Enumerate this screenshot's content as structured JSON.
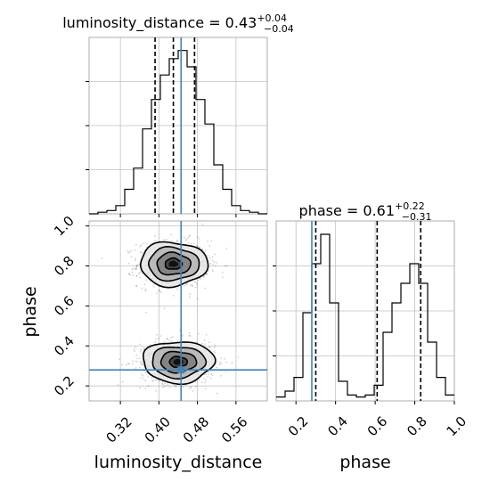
{
  "chart_data": {
    "type": "corner",
    "parameters": [
      "luminosity_distance",
      "phase"
    ],
    "truths": {
      "luminosity_distance": 0.446,
      "phase": 0.28
    },
    "colors": {
      "truth": "#4682b4",
      "hist": "#000000",
      "grid": "#c0c0c0"
    },
    "marginals": [
      {
        "name": "luminosity_distance",
        "title": {
          "label": "luminosity_distance = 0.43",
          "plus": "+0.04",
          "minus": "−0.04"
        },
        "quantiles": [
          0.392,
          0.43,
          0.474
        ],
        "xlim": [
          0.255,
          0.625
        ],
        "bin_edges": [
          0.255,
          0.2735,
          0.292,
          0.3105,
          0.329,
          0.3475,
          0.366,
          0.3845,
          0.403,
          0.4215,
          0.44,
          0.4585,
          0.477,
          0.4955,
          0.514,
          0.5325,
          0.551,
          0.5695,
          0.588,
          0.6065,
          0.625
        ],
        "counts": [
          0,
          1,
          2,
          5,
          15,
          28,
          52,
          70,
          85,
          95,
          100,
          90,
          70,
          55,
          30,
          15,
          5,
          2,
          1,
          0
        ],
        "grid": true
      },
      {
        "name": "phase",
        "title": {
          "label": "phase = 0.61",
          "plus": "+0.22",
          "minus": "−0.31"
        },
        "quantiles": [
          0.3,
          0.61,
          0.83
        ],
        "xlim": [
          0.1,
          1.0
        ],
        "xticks": [
          "0.2",
          "0.4",
          "0.6",
          "0.8",
          "1.0"
        ],
        "xlabel": "phase",
        "bin_edges": [
          0.1,
          0.145,
          0.19,
          0.235,
          0.28,
          0.325,
          0.37,
          0.415,
          0.46,
          0.505,
          0.55,
          0.595,
          0.64,
          0.685,
          0.73,
          0.775,
          0.82,
          0.865,
          0.91,
          0.955,
          1.0
        ],
        "counts": [
          2,
          5,
          12,
          45,
          70,
          85,
          50,
          10,
          3,
          2,
          3,
          8,
          35,
          50,
          60,
          70,
          60,
          30,
          12,
          3
        ],
        "grid": true
      }
    ],
    "joint": {
      "x": "luminosity_distance",
      "y": "phase",
      "xlim": [
        0.255,
        0.625
      ],
      "ylim": [
        0.125,
        1.025
      ],
      "xticks": [
        "0.32",
        "0.40",
        "0.48",
        "0.56"
      ],
      "yticks": [
        "0.2",
        "0.4",
        "0.6",
        "0.8",
        "1.0"
      ],
      "xlabel": "luminosity_distance",
      "ylabel": "phase",
      "modes": [
        {
          "x": 0.43,
          "y": 0.81,
          "sx": 0.035,
          "sy": 0.055
        },
        {
          "x": 0.44,
          "y": 0.32,
          "sx": 0.037,
          "sy": 0.052
        }
      ],
      "contour_levels_sigma": [
        0.5,
        1.0,
        1.5,
        2.0
      ],
      "grid": true
    }
  }
}
